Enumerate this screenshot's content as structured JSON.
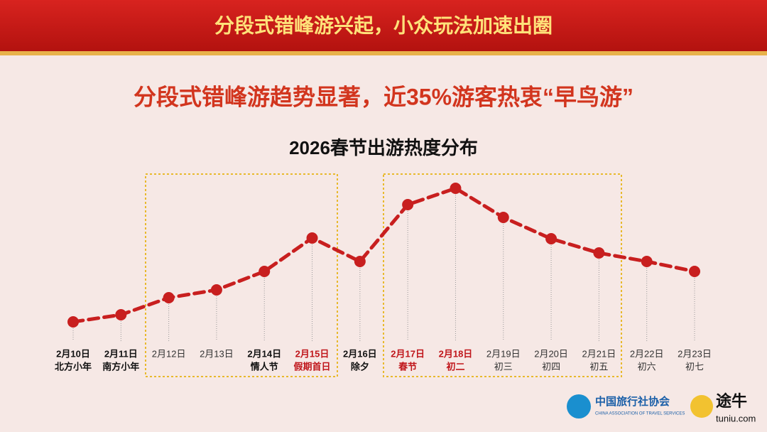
{
  "header": {
    "title": "分段式错峰游兴起，小众玩法加速出圈"
  },
  "headline": "分段式错峰游趋势显著，近35%游客热衷“早鸟游”",
  "chart_data": {
    "type": "line",
    "title": "2026春节出游热度分布",
    "categories": [
      "2月10日",
      "2月11日",
      "2月12日",
      "2月13日",
      "2月14日",
      "2月15日",
      "2月16日",
      "2月17日",
      "2月18日",
      "2月19日",
      "2月20日",
      "2月21日",
      "2月22日",
      "2月23日"
    ],
    "sublabels": [
      "北方小年",
      "南方小年",
      null,
      null,
      "情人节",
      "假期首日",
      "除夕",
      "春节",
      "初二",
      "初三",
      "初四",
      "初五",
      "初六",
      "初七"
    ],
    "label_colors": [
      "#111",
      "#111",
      "#333",
      "#333",
      "#111",
      "#c0161b",
      "#111",
      "#c0161b",
      "#c0161b",
      "#333",
      "#333",
      "#333",
      "#333",
      "#333"
    ],
    "values": [
      27,
      37,
      61,
      72,
      98,
      145,
      112,
      192,
      215,
      174,
      144,
      124,
      112,
      98
    ],
    "color": "#c81f1f"
  },
  "logos": {
    "association": "中国旅行社协会",
    "association_en": "CHINA ASSOCIATION OF TRAVEL SERVICES",
    "brand": "途牛",
    "brand_url": "tuniu.com"
  }
}
